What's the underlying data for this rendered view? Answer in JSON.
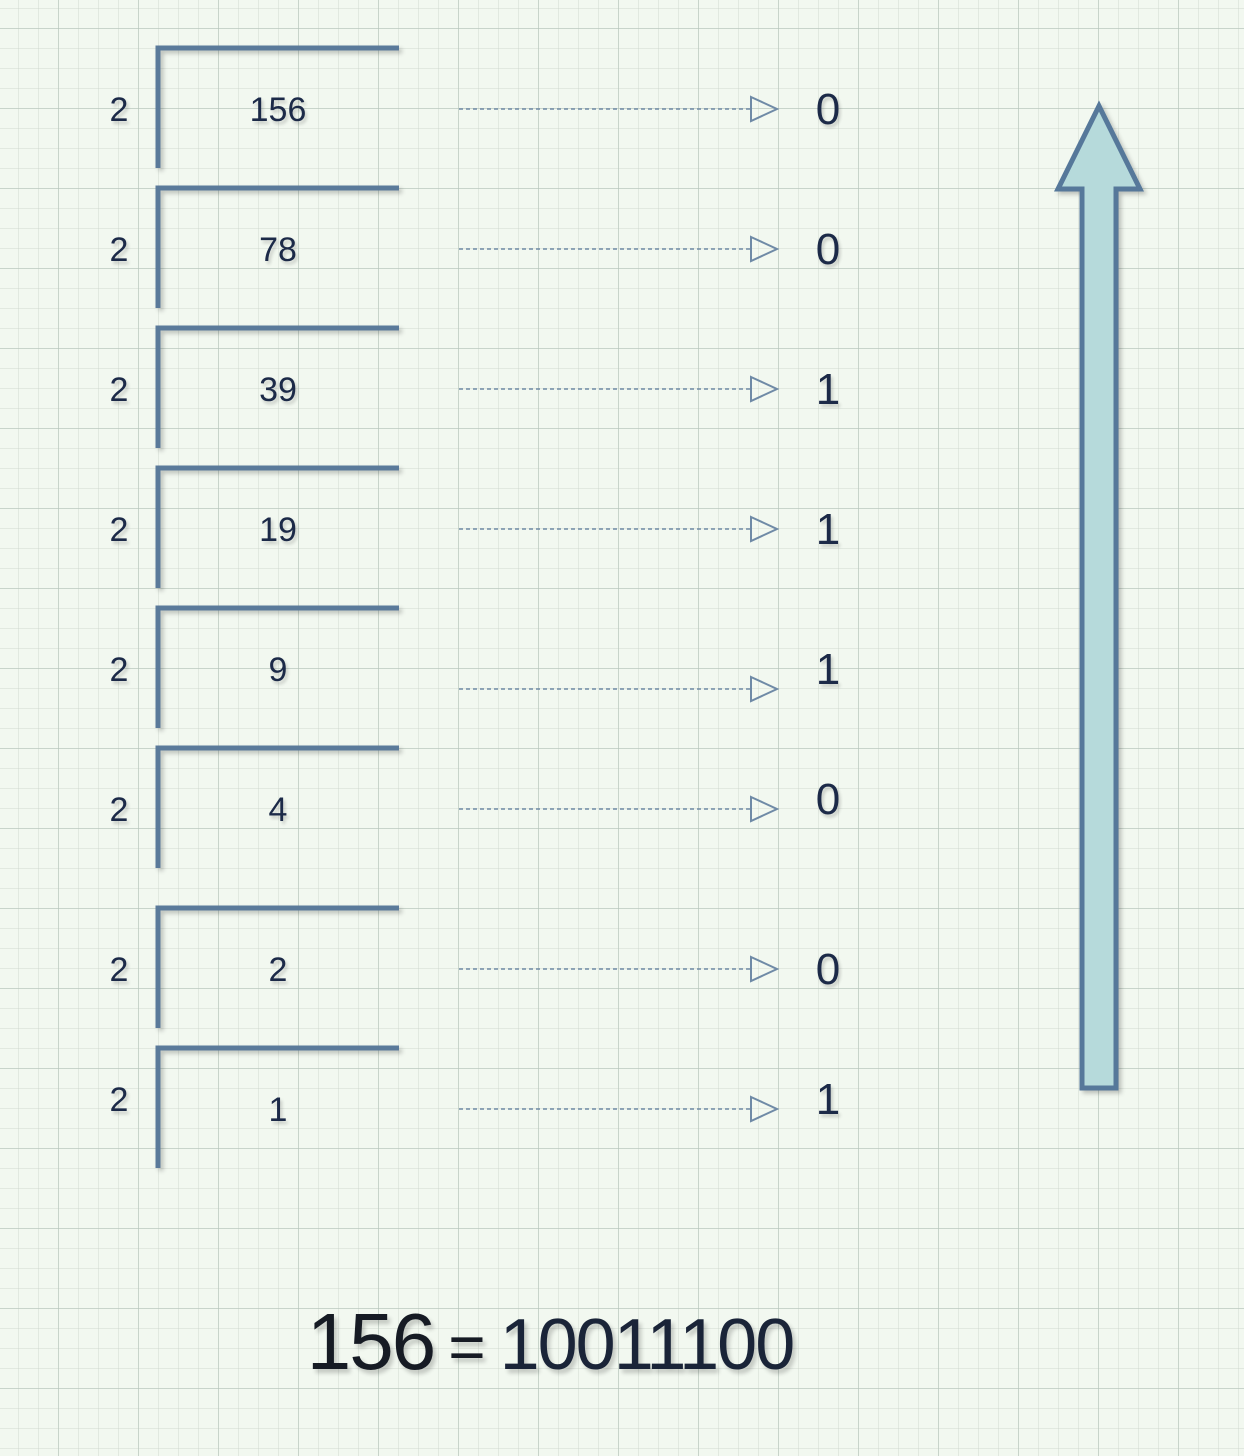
{
  "title": "",
  "steps": [
    {
      "divisor": "2",
      "quotient": "156",
      "remainder": "0"
    },
    {
      "divisor": "2",
      "quotient": "78",
      "remainder": "0"
    },
    {
      "divisor": "2",
      "quotient": "39",
      "remainder": "1"
    },
    {
      "divisor": "2",
      "quotient": "19",
      "remainder": "1"
    },
    {
      "divisor": "2",
      "quotient": "9",
      "remainder": "1"
    },
    {
      "divisor": "2",
      "quotient": "4",
      "remainder": "0"
    },
    {
      "divisor": "2",
      "quotient": "2",
      "remainder": "0"
    },
    {
      "divisor": "2",
      "quotient": "1",
      "remainder": "1"
    }
  ],
  "result": {
    "decimal": "156",
    "equals": "=",
    "binary": "10011100"
  },
  "colors": {
    "background": "#f2f8f0",
    "grid": "#c8d4c8",
    "bracket": "#5a7a9a",
    "dashed_arrow": "#6f8aa6",
    "big_arrow_fill": "#b6dadb",
    "big_arrow_stroke": "#56789a",
    "text": "#1c2a48"
  }
}
